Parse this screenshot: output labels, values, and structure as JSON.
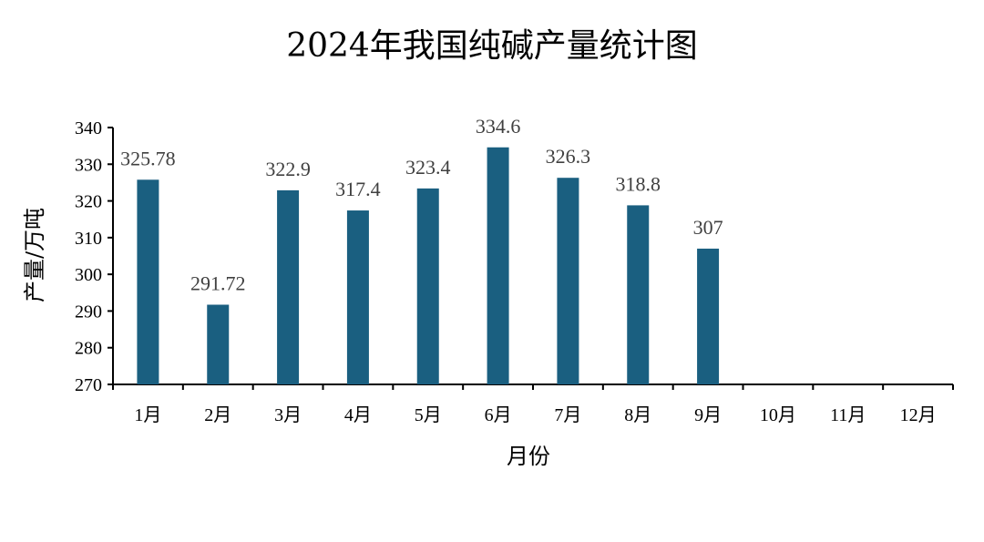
{
  "chart_data": {
    "type": "bar",
    "title": "2024年我国纯碱产量统计图",
    "xlabel": "月份",
    "ylabel": "产量/万吨",
    "categories": [
      "1月",
      "2月",
      "3月",
      "4月",
      "5月",
      "6月",
      "7月",
      "8月",
      "9月",
      "10月",
      "11月",
      "12月"
    ],
    "values": [
      325.78,
      291.72,
      322.9,
      317.4,
      323.4,
      334.6,
      326.3,
      318.8,
      307,
      null,
      null,
      null
    ],
    "value_labels": [
      "325.78",
      "291.72",
      "322.9",
      "317.4",
      "323.4",
      "334.6",
      "326.3",
      "318.8",
      "307",
      "",
      "",
      ""
    ],
    "ylim": [
      270,
      340
    ],
    "yticks": [
      "270",
      "280",
      "290",
      "300",
      "310",
      "320",
      "330",
      "340"
    ],
    "bar_color": "#1a5f80",
    "grid": false,
    "legend": "none"
  }
}
